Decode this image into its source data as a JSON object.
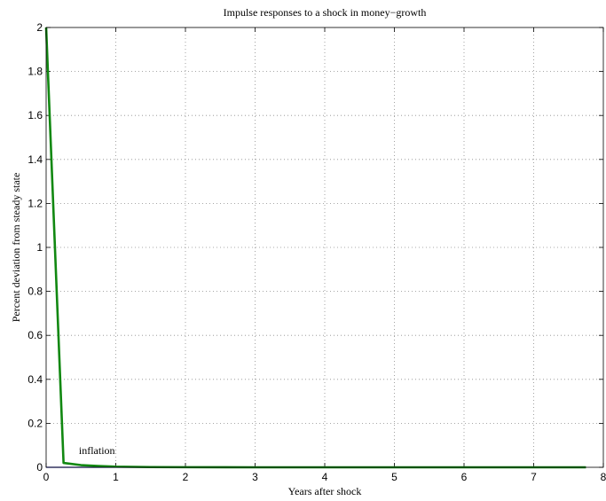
{
  "chart_data": {
    "type": "line",
    "title": "Impulse responses to a shock in money−growth",
    "xlabel": "Years after shock",
    "ylabel": "Percent deviation from steady state",
    "xlim": [
      0,
      8
    ],
    "ylim": [
      0,
      2
    ],
    "xticks": [
      0,
      1,
      2,
      3,
      4,
      5,
      6,
      7,
      8
    ],
    "yticks": [
      0,
      0.2,
      0.4,
      0.6,
      0.8,
      1,
      1.2,
      1.4,
      1.6,
      1.8,
      2
    ],
    "grid": true,
    "series": [
      {
        "name": "",
        "color": "#1f1fb4",
        "x": [
          0,
          0.25,
          0.5,
          0.75,
          1,
          1.25,
          1.5,
          2,
          3,
          4,
          5,
          6,
          7,
          7.75
        ],
        "y": [
          0,
          0,
          0,
          0,
          0,
          0,
          0,
          0,
          0,
          0,
          0,
          0,
          0,
          0
        ]
      },
      {
        "name": "",
        "color": "#118811",
        "x": [
          0,
          0.25,
          0.5,
          0.75,
          1,
          1.25,
          1.5,
          2,
          3,
          4,
          5,
          6,
          7,
          7.75
        ],
        "y": [
          2,
          0.02,
          0.01,
          0.006,
          0.003,
          0.002,
          0.001,
          0.0005,
          0,
          0,
          0,
          0,
          0,
          0
        ]
      }
    ],
    "annotations": [
      {
        "text": "inflation",
        "x": 0.47,
        "y": 0.06
      }
    ]
  }
}
